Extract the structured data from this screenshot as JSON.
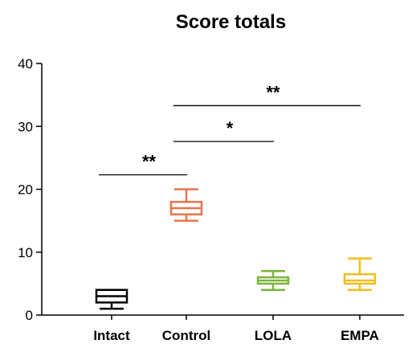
{
  "chart_data": {
    "type": "box",
    "title": "Score totals",
    "xlabel": "",
    "ylabel": "",
    "ylim": [
      0,
      40
    ],
    "yticks": [
      0,
      10,
      20,
      30,
      40
    ],
    "grid": false,
    "categories": [
      "Intact",
      "Control",
      "LOLA",
      "EMPA"
    ],
    "boxes": [
      {
        "category": "Intact",
        "min": 1,
        "q1": 2,
        "median": 3,
        "q3": 4,
        "max": 4,
        "color": "#000000"
      },
      {
        "category": "Control",
        "min": 15,
        "q1": 16,
        "median": 17,
        "q3": 18,
        "max": 20,
        "color": "#E8744A"
      },
      {
        "category": "LOLA",
        "min": 4,
        "q1": 5,
        "median": 5.5,
        "q3": 6,
        "max": 7,
        "color": "#7AB539"
      },
      {
        "category": "EMPA",
        "min": 4,
        "q1": 5,
        "median": 5.5,
        "q3": 6.5,
        "max": 9,
        "color": "#F2BE17"
      }
    ],
    "significance": [
      {
        "from": "Intact",
        "to": "Control",
        "label": "**",
        "y": 22.3
      },
      {
        "from": "Control",
        "to": "LOLA",
        "label": "*",
        "y": 27.6
      },
      {
        "from": "Control",
        "to": "EMPA",
        "label": "**",
        "y": 33.3
      }
    ]
  }
}
